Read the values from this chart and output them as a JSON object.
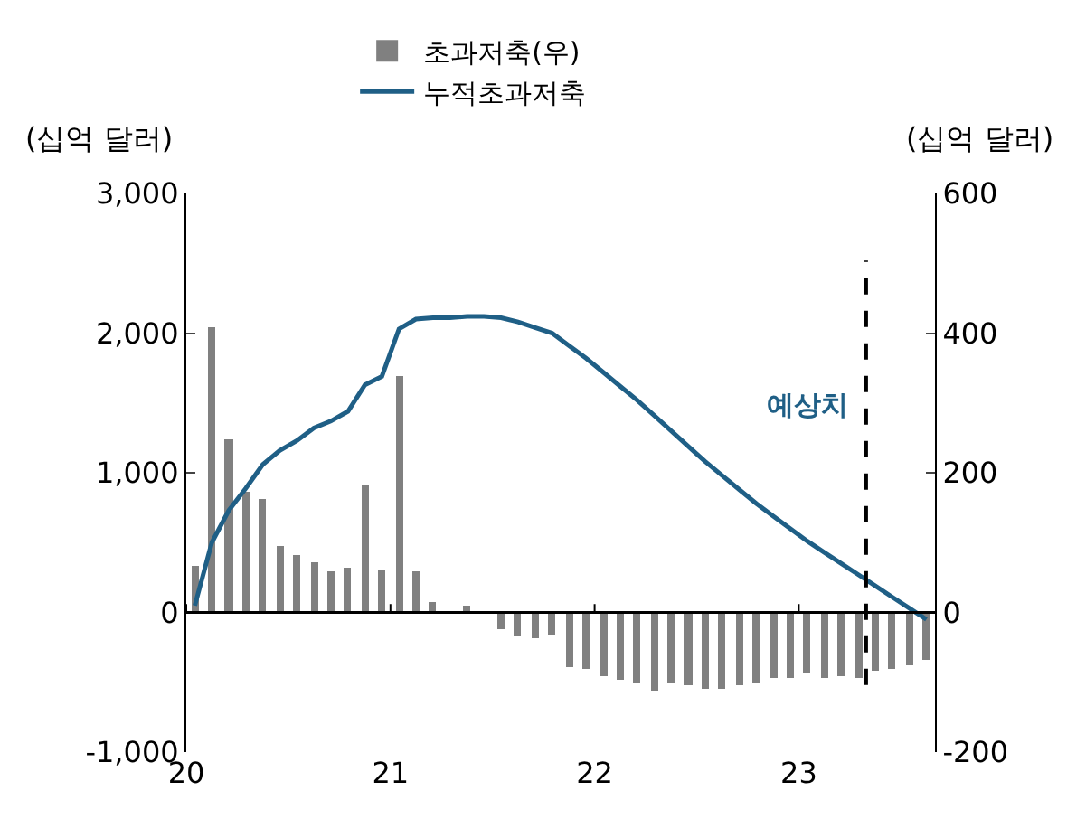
{
  "chart_data": {
    "type": "bar",
    "ylabel": "(십억 달러)",
    "y2label": "(십억 달러)",
    "x": [
      20.042,
      20.125,
      20.208,
      20.292,
      20.375,
      20.458,
      20.542,
      20.625,
      20.708,
      20.792,
      20.875,
      20.958,
      21.042,
      21.125,
      21.208,
      21.292,
      21.375,
      21.458,
      21.542,
      21.625,
      21.708,
      21.792,
      21.875,
      21.958,
      22.042,
      22.125,
      22.208,
      22.292,
      22.375,
      22.458,
      22.542,
      22.625,
      22.708,
      22.792,
      22.875,
      22.958,
      23.042,
      23.125,
      23.208,
      23.292,
      23.375,
      23.458,
      23.542,
      23.625
    ],
    "series": [
      {
        "name": "초과저축(우)",
        "axis": "y2",
        "color": "#808080",
        "values": [
          66,
          409,
          249,
          173,
          162,
          95,
          81,
          71,
          58,
          65,
          184,
          61,
          339,
          60,
          16,
          null,
          9,
          null,
          -24,
          -34,
          -37,
          -32,
          -78,
          -82,
          -91,
          -97,
          -102,
          -111,
          -102,
          -105,
          -109,
          -109,
          -104,
          -101,
          -95,
          -93,
          -87,
          -94,
          -90,
          -95,
          -84,
          -81,
          -75,
          -69
        ]
      },
      {
        "name": "누적초과저축",
        "type": "line",
        "color": "#1f5f86",
        "values": [
          50,
          500,
          730,
          890,
          1060,
          1160,
          1230,
          1320,
          1370,
          1440,
          1630,
          1690,
          2030,
          2100,
          2110,
          2110,
          2120,
          2120,
          2110,
          2080,
          2040,
          2000,
          1910,
          1820,
          1720,
          1620,
          1520,
          1410,
          1300,
          1190,
          1080,
          980,
          880,
          780,
          690,
          600,
          510,
          430,
          350,
          270,
          190,
          110,
          30,
          -50
        ]
      }
    ],
    "xlim": [
      20,
      23.667
    ],
    "xticks": [
      20,
      21,
      22,
      23
    ],
    "ylim": [
      -1000,
      3000
    ],
    "yticks": [
      {
        "value": -1000,
        "label": "-1,000"
      },
      0,
      {
        "value": 1000,
        "label": "1,000"
      },
      {
        "value": 2000,
        "label": "2,000"
      },
      {
        "value": 3000,
        "label": "3,000"
      }
    ],
    "y2lim": [
      -200,
      600
    ],
    "y2ticks": [
      -200,
      0,
      200,
      400,
      600
    ],
    "ref_lines": [
      {
        "axis": "y",
        "value": 0,
        "color": "#000000",
        "line_style": "solid"
      },
      {
        "axis": "x",
        "value": 23.33,
        "label": "예상치",
        "color": "#000000",
        "line_style": "dashed"
      }
    ],
    "legend": "top"
  }
}
